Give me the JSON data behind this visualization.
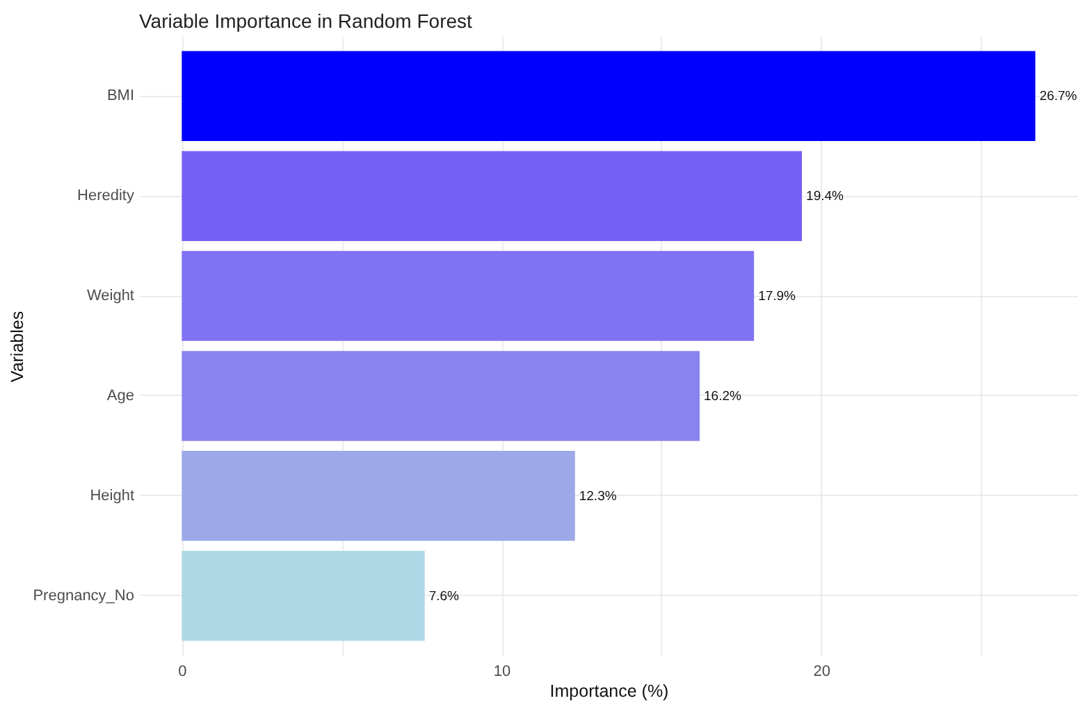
{
  "chart_data": {
    "type": "bar",
    "orientation": "horizontal",
    "title": "Variable Importance in Random Forest",
    "xlabel": "Importance (%)",
    "ylabel": "Variables",
    "categories": [
      "BMI",
      "Heredity",
      "Weight",
      "Age",
      "Height",
      "Pregnancy_No"
    ],
    "values": [
      26.7,
      19.4,
      17.9,
      16.2,
      12.3,
      7.6
    ],
    "colors": [
      "#0000ff",
      "#7561f5",
      "#7f73f3",
      "#8883ef",
      "#9ca8e7",
      "#add8e6"
    ],
    "value_labels": [
      "26.7%",
      "19.4%",
      "17.9%",
      "16.2%",
      "12.3%",
      "7.6%"
    ],
    "xlim": [
      -1.335,
      28.035
    ],
    "xticks": [
      0,
      {
        "value": 5,
        "label": null
      },
      10,
      {
        "value": 15,
        "label": null
      },
      20,
      {
        "value": 25,
        "label": null
      }
    ],
    "grid": true
  }
}
